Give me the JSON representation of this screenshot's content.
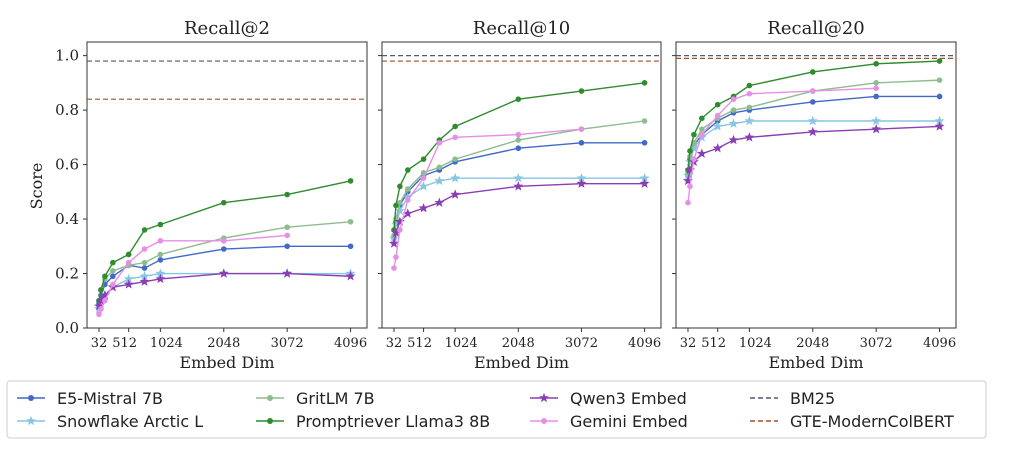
{
  "chart_data": {
    "type": "line",
    "xlabel": "Embed Dim",
    "ylabel": "Score",
    "ylim": [
      0.0,
      1.05
    ],
    "xlim": [
      0,
      4200
    ],
    "xticks": [
      32,
      512,
      1024,
      2048,
      3072,
      4096
    ],
    "xtick_labels": [
      "32",
      "512",
      "1024",
      "2048",
      "3072",
      "4096"
    ],
    "yticks": [
      0.0,
      0.2,
      0.4,
      0.6,
      0.8,
      1.0
    ],
    "ytick_labels": [
      "0.0",
      "0.2",
      "0.4",
      "0.6",
      "0.8",
      "1.0"
    ],
    "legend": [
      {
        "name": "E5-Mistral 7B",
        "color": "#4169c8",
        "marker": "circle",
        "style": "solid"
      },
      {
        "name": "Snowflake Arctic L",
        "color": "#87c6e3",
        "marker": "star",
        "style": "solid"
      },
      {
        "name": "GritLM 7B",
        "color": "#8fbc8f",
        "marker": "circle",
        "style": "solid"
      },
      {
        "name": "Promptriever Llama3 8B",
        "color": "#2e8b2e",
        "marker": "circle",
        "style": "solid"
      },
      {
        "name": "Qwen3 Embed",
        "color": "#8a3db5",
        "marker": "star",
        "style": "solid"
      },
      {
        "name": "Gemini Embed",
        "color": "#e68fe6",
        "marker": "circle",
        "style": "solid"
      },
      {
        "name": "BM25",
        "color": "#555577",
        "marker": "none",
        "style": "dashed"
      },
      {
        "name": "GTE-ModernColBERT",
        "color": "#a0522d",
        "marker": "none",
        "style": "dashed"
      }
    ],
    "panels": [
      {
        "title": "Recall@2",
        "baselines": {
          "BM25": 0.98,
          "GTE-ModernColBERT": 0.84
        },
        "series": [
          {
            "name": "E5-Mistral 7B",
            "x": [
              32,
              64,
              128,
              256,
              512,
              768,
              1024,
              2048,
              3072,
              4096
            ],
            "y": [
              0.09,
              0.12,
              0.16,
              0.19,
              0.23,
              0.22,
              0.25,
              0.29,
              0.3,
              0.3
            ]
          },
          {
            "name": "Snowflake Arctic L",
            "x": [
              32,
              64,
              128,
              256,
              512,
              768,
              1024,
              2048,
              3072,
              4096
            ],
            "y": [
              0.07,
              0.09,
              0.12,
              0.15,
              0.18,
              0.19,
              0.2,
              0.2,
              0.2,
              0.2
            ]
          },
          {
            "name": "GritLM 7B",
            "x": [
              32,
              64,
              128,
              256,
              512,
              768,
              1024,
              2048,
              3072,
              4096
            ],
            "y": [
              0.1,
              0.14,
              0.18,
              0.21,
              0.23,
              0.24,
              0.27,
              0.33,
              0.37,
              0.39
            ]
          },
          {
            "name": "Promptriever Llama3 8B",
            "x": [
              32,
              64,
              128,
              256,
              512,
              768,
              1024,
              2048,
              3072,
              4096
            ],
            "y": [
              0.1,
              0.14,
              0.19,
              0.24,
              0.27,
              0.36,
              0.38,
              0.46,
              0.49,
              0.54
            ]
          },
          {
            "name": "Qwen3 Embed",
            "x": [
              32,
              64,
              128,
              256,
              512,
              768,
              1024,
              2048,
              3072,
              4096
            ],
            "y": [
              0.08,
              0.1,
              0.12,
              0.15,
              0.16,
              0.17,
              0.18,
              0.2,
              0.2,
              0.19
            ]
          },
          {
            "name": "Gemini Embed",
            "x": [
              32,
              64,
              128,
              256,
              512,
              768,
              1024,
              2048,
              3072
            ],
            "y": [
              0.05,
              0.07,
              0.1,
              0.16,
              0.24,
              0.29,
              0.32,
              0.32,
              0.34
            ]
          }
        ]
      },
      {
        "title": "Recall@10",
        "baselines": {
          "BM25": 1.0,
          "GTE-ModernColBERT": 0.98
        },
        "series": [
          {
            "name": "E5-Mistral 7B",
            "x": [
              32,
              64,
              128,
              256,
              512,
              768,
              1024,
              2048,
              3072,
              4096
            ],
            "y": [
              0.33,
              0.39,
              0.45,
              0.5,
              0.56,
              0.58,
              0.61,
              0.66,
              0.68,
              0.68
            ]
          },
          {
            "name": "Snowflake Arctic L",
            "x": [
              32,
              64,
              128,
              256,
              512,
              768,
              1024,
              2048,
              3072,
              4096
            ],
            "y": [
              0.33,
              0.38,
              0.43,
              0.48,
              0.52,
              0.54,
              0.55,
              0.55,
              0.55,
              0.55
            ]
          },
          {
            "name": "GritLM 7B",
            "x": [
              32,
              64,
              128,
              256,
              512,
              768,
              1024,
              2048,
              3072,
              4096
            ],
            "y": [
              0.34,
              0.4,
              0.46,
              0.51,
              0.57,
              0.59,
              0.62,
              0.69,
              0.73,
              0.76
            ]
          },
          {
            "name": "Promptriever Llama3 8B",
            "x": [
              32,
              64,
              128,
              256,
              512,
              768,
              1024,
              2048,
              3072,
              4096
            ],
            "y": [
              0.36,
              0.45,
              0.52,
              0.58,
              0.62,
              0.69,
              0.74,
              0.84,
              0.87,
              0.9
            ]
          },
          {
            "name": "Qwen3 Embed",
            "x": [
              32,
              64,
              128,
              256,
              512,
              768,
              1024,
              2048,
              3072,
              4096
            ],
            "y": [
              0.31,
              0.35,
              0.39,
              0.42,
              0.44,
              0.46,
              0.49,
              0.52,
              0.53,
              0.53
            ]
          },
          {
            "name": "Gemini Embed",
            "x": [
              32,
              64,
              128,
              256,
              512,
              768,
              1024,
              2048,
              3072
            ],
            "y": [
              0.22,
              0.26,
              0.36,
              0.47,
              0.55,
              0.68,
              0.7,
              0.71,
              0.73
            ]
          }
        ]
      },
      {
        "title": "Recall@20",
        "baselines": {
          "BM25": 1.0,
          "GTE-ModernColBERT": 0.99
        },
        "series": [
          {
            "name": "E5-Mistral 7B",
            "x": [
              32,
              64,
              128,
              256,
              512,
              768,
              1024,
              2048,
              3072,
              4096
            ],
            "y": [
              0.56,
              0.62,
              0.67,
              0.71,
              0.76,
              0.79,
              0.8,
              0.83,
              0.85,
              0.85
            ]
          },
          {
            "name": "Snowflake Arctic L",
            "x": [
              32,
              64,
              128,
              256,
              512,
              768,
              1024,
              2048,
              3072,
              4096
            ],
            "y": [
              0.56,
              0.61,
              0.66,
              0.7,
              0.74,
              0.75,
              0.76,
              0.76,
              0.76,
              0.76
            ]
          },
          {
            "name": "GritLM 7B",
            "x": [
              32,
              64,
              128,
              256,
              512,
              768,
              1024,
              2048,
              3072,
              4096
            ],
            "y": [
              0.57,
              0.63,
              0.68,
              0.73,
              0.77,
              0.8,
              0.81,
              0.87,
              0.9,
              0.91
            ]
          },
          {
            "name": "Promptriever Llama3 8B",
            "x": [
              32,
              64,
              128,
              256,
              512,
              768,
              1024,
              2048,
              3072,
              4096
            ],
            "y": [
              0.58,
              0.65,
              0.71,
              0.77,
              0.82,
              0.85,
              0.89,
              0.94,
              0.97,
              0.98
            ]
          },
          {
            "name": "Qwen3 Embed",
            "x": [
              32,
              64,
              128,
              256,
              512,
              768,
              1024,
              2048,
              3072,
              4096
            ],
            "y": [
              0.54,
              0.58,
              0.61,
              0.64,
              0.66,
              0.69,
              0.7,
              0.72,
              0.73,
              0.74
            ]
          },
          {
            "name": "Gemini Embed",
            "x": [
              32,
              64,
              128,
              256,
              512,
              768,
              1024,
              2048,
              3072
            ],
            "y": [
              0.46,
              0.52,
              0.62,
              0.71,
              0.78,
              0.84,
              0.86,
              0.87,
              0.88
            ]
          }
        ]
      }
    ]
  }
}
